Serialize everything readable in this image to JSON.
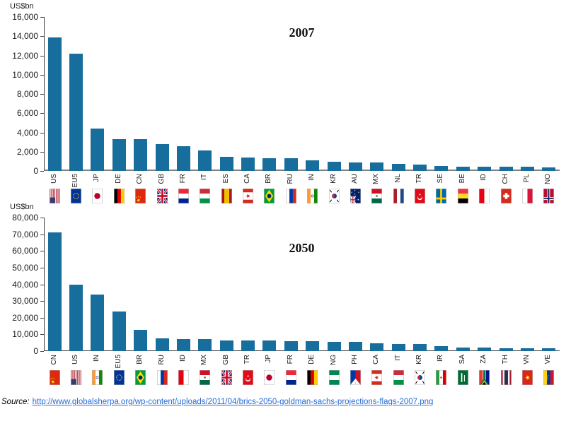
{
  "source": {
    "label": "Source:",
    "url_text": "http://www.globalsherpa.org/wp-content/uploads/2011/04/brics-2050-goldman-sachs-projections-flags-2007.png"
  },
  "colors": {
    "bar": "#176d9c",
    "axis": "#404040",
    "baseline_top_chart": "#808080",
    "link": "#2a6cd4",
    "background": "#ffffff"
  },
  "chart_data": [
    {
      "type": "bar",
      "title": "2007",
      "ylabel": "US$bn",
      "ylim": [
        0,
        16000
      ],
      "ytick_step": 2000,
      "yticks": [
        "16,000",
        "14,000",
        "12,000",
        "10,000",
        "8,000",
        "6,000",
        "4,000",
        "2,000",
        "0"
      ],
      "categories": [
        "US",
        "EU5",
        "JP",
        "DE",
        "CN",
        "GB",
        "FR",
        "IT",
        "ES",
        "CA",
        "BR",
        "RU",
        "IN",
        "KR",
        "AU",
        "MX",
        "NL",
        "TR",
        "SE",
        "BE",
        "ID",
        "CH",
        "PL",
        "NO"
      ],
      "values": [
        13850,
        12200,
        4380,
        3320,
        3280,
        2770,
        2560,
        2100,
        1440,
        1430,
        1310,
        1290,
        1100,
        970,
        910,
        890,
        770,
        660,
        550,
        450,
        430,
        420,
        410,
        390
      ],
      "flag_icons": [
        "flag-us",
        "flag-eu",
        "flag-jp",
        "flag-de",
        "flag-cn",
        "flag-gb",
        "flag-fr",
        "flag-it",
        "flag-es",
        "flag-ca",
        "flag-br",
        "flag-ru",
        "flag-in",
        "flag-kr",
        "flag-au",
        "flag-mx",
        "flag-nl",
        "flag-tr",
        "flag-se",
        "flag-be",
        "flag-id",
        "flag-ch",
        "flag-pl",
        "flag-no"
      ],
      "grid": false,
      "legend": false
    },
    {
      "type": "bar",
      "title": "2050",
      "ylabel": "US$bn",
      "ylim": [
        0,
        80000
      ],
      "ytick_step": 10000,
      "yticks": [
        "80,000",
        "70,000",
        "60,000",
        "50,000",
        "40,000",
        "30,000",
        "20,000",
        "10,000",
        "0"
      ],
      "categories": [
        "CN",
        "US",
        "IN",
        "EU5",
        "BR",
        "RU",
        "ID",
        "MX",
        "GB",
        "TR",
        "JP",
        "FR",
        "DE",
        "NG",
        "PH",
        "CA",
        "IT",
        "KR",
        "IR",
        "SA",
        "ZA",
        "TH",
        "VN",
        "VE"
      ],
      "values": [
        71000,
        39700,
        33900,
        23500,
        12500,
        7800,
        7200,
        7400,
        6200,
        6400,
        6200,
        5900,
        6000,
        5400,
        5300,
        4500,
        4300,
        4100,
        3100,
        2300,
        2300,
        1900,
        1900,
        1600
      ],
      "flag_icons": [
        "flag-cn",
        "flag-us",
        "flag-in",
        "flag-eu",
        "flag-br",
        "flag-ru",
        "flag-id",
        "flag-mx",
        "flag-gb",
        "flag-tr",
        "flag-jp",
        "flag-fr",
        "flag-de",
        "flag-ng",
        "flag-ph",
        "flag-ca",
        "flag-it",
        "flag-kr",
        "flag-ir",
        "flag-sa",
        "flag-za",
        "flag-th",
        "flag-vn",
        "flag-ve"
      ],
      "grid": false,
      "legend": false
    }
  ]
}
